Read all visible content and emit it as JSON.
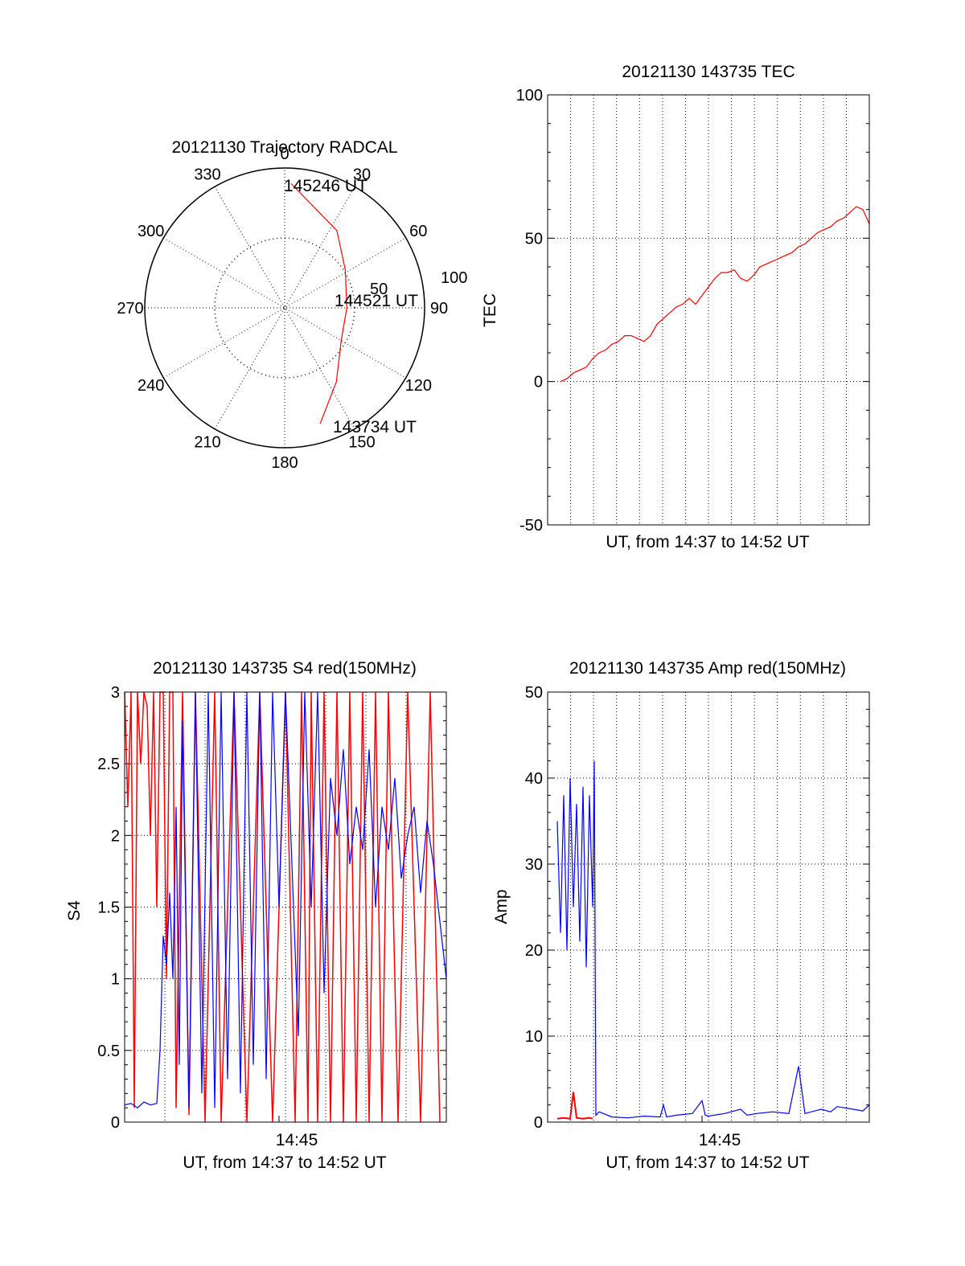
{
  "chart_data": [
    {
      "id": "trajectory",
      "type": "polar",
      "title": "20121130 Trajectory RADCAL",
      "azimuth_labels": [
        "0",
        "30",
        "60",
        "90",
        "120",
        "150",
        "180",
        "210",
        "240",
        "270",
        "300",
        "330"
      ],
      "elevation_labels": [
        "50",
        "100"
      ],
      "start_label": "143734 UT",
      "mid_label": "144521 UT",
      "end_label": "145246 UT",
      "series": [
        {
          "color": "#ff0000",
          "points": [
            {
              "zenith": 78,
              "azimuth": 163,
              "label": "143734 UT"
            },
            {
              "zenith": 58,
              "azimuth": 145
            },
            {
              "zenith": 42,
              "azimuth": 120
            },
            {
              "zenith": 40,
              "azimuth": 90,
              "label": "144521 UT"
            },
            {
              "zenith": 46,
              "azimuth": 58
            },
            {
              "zenith": 60,
              "azimuth": 34
            },
            {
              "zenith": 80,
              "azimuth": 3,
              "label": "145246 UT"
            }
          ]
        }
      ]
    },
    {
      "id": "tec",
      "type": "line",
      "title": "20121130 143735 TEC",
      "xlabel": "UT, from 14:37 to 14:52 UT",
      "ylabel": "TEC",
      "ylim": [
        -50,
        100
      ],
      "yticks": [
        "100",
        "50",
        "0",
        "-50"
      ],
      "xlim": [
        0,
        100
      ],
      "series": [
        {
          "color": "#ff0000",
          "x": [
            4,
            6,
            8,
            10,
            12,
            14,
            16,
            18,
            20,
            22,
            24,
            26,
            28,
            30,
            32,
            34,
            36,
            38,
            40,
            42,
            44,
            46,
            48,
            50,
            52,
            54,
            56,
            58,
            60,
            62,
            64,
            66,
            68,
            70,
            72,
            74,
            76,
            78,
            80,
            82,
            84,
            86,
            88,
            90,
            92,
            94,
            96,
            98,
            100
          ],
          "y": [
            0,
            1,
            3,
            4,
            5,
            8,
            10,
            11,
            13,
            14,
            16,
            16,
            15,
            14,
            16,
            20,
            22,
            24,
            26,
            27,
            29,
            27,
            30,
            33,
            36,
            38,
            38,
            39,
            36,
            35,
            37,
            40,
            41,
            42,
            43,
            44,
            45,
            47,
            48,
            50,
            52,
            53,
            54,
            56,
            57,
            59,
            61,
            60,
            55
          ]
        }
      ]
    },
    {
      "id": "s4",
      "type": "line",
      "title": "20121130 143735 S4 red(150MHz)",
      "xlabel": "UT, from 14:37 to 14:52 UT",
      "ylabel": "S4",
      "ylim": [
        0,
        3
      ],
      "yticks": [
        "3",
        "2.5",
        "2",
        "1.5",
        "1",
        "0.5",
        "0"
      ],
      "xtick_label": "14:45",
      "xtick_pos": 48,
      "series": [
        {
          "color": "#ff0000",
          "x": [
            0,
            1,
            2,
            3,
            4,
            5,
            6,
            7,
            8,
            9,
            10,
            11,
            12,
            13,
            14,
            15,
            16,
            18,
            20,
            22,
            25,
            28,
            30,
            34,
            38,
            42,
            46,
            50,
            53,
            55,
            57,
            58,
            60,
            62,
            64,
            66,
            68,
            70,
            72,
            74,
            76,
            78,
            80,
            82,
            85,
            88,
            92,
            95,
            98
          ],
          "y": [
            3,
            2.2,
            3,
            0.1,
            3,
            2.5,
            3,
            2.9,
            2.0,
            3,
            1.5,
            3,
            3,
            1.0,
            3,
            3,
            0.1,
            3,
            0.05,
            3,
            0,
            3,
            0,
            3,
            0,
            3,
            0,
            3,
            0,
            3,
            0,
            3,
            0,
            3,
            0,
            3,
            0,
            3,
            0,
            3,
            0,
            3,
            0,
            3,
            0,
            3,
            0,
            3,
            0
          ]
        },
        {
          "color": "#0000ff",
          "x": [
            0,
            2,
            4,
            6,
            8,
            10,
            11,
            12,
            13,
            14,
            15,
            16,
            17,
            18,
            20,
            22,
            24,
            26,
            28,
            30,
            32,
            34,
            36,
            38,
            40,
            42,
            44,
            46,
            48,
            50,
            52,
            54,
            56,
            58,
            60,
            62,
            64,
            66,
            68,
            70,
            72,
            74,
            76,
            78,
            80,
            82,
            84,
            86,
            88,
            90,
            92,
            94,
            96,
            98,
            100
          ],
          "y": [
            0.12,
            0.13,
            0.1,
            0.14,
            0.12,
            0.13,
            0.5,
            1.3,
            1.1,
            1.6,
            1.0,
            2.2,
            0.4,
            2.8,
            0.1,
            3,
            0.2,
            3,
            0.1,
            3,
            0.3,
            3,
            0.2,
            3,
            0.4,
            3,
            0.3,
            3,
            1.5,
            3,
            1.8,
            0.6,
            3,
            1.5,
            3,
            0.9,
            2.4,
            2.0,
            2.6,
            1.8,
            2.2,
            1.9,
            2.6,
            1.5,
            2.2,
            1.9,
            2.4,
            1.7,
            2.0,
            2.2,
            1.6,
            2.1,
            1.8,
            1.4,
            1.0
          ]
        }
      ]
    },
    {
      "id": "amp",
      "type": "line",
      "title": "20121130 143735 Amp red(150MHz)",
      "xlabel": "UT, from 14:37 to 14:52 UT",
      "ylabel": "Amp",
      "ylim": [
        0,
        50
      ],
      "yticks": [
        "50",
        "40",
        "30",
        "20",
        "10",
        "0"
      ],
      "xtick_label": "14:45",
      "xtick_pos": 48,
      "series": [
        {
          "color": "#0000ff",
          "x": [
            3,
            4,
            5,
            6,
            7,
            8,
            9,
            10,
            11,
            12,
            13,
            14,
            14.5,
            15,
            16,
            18,
            20,
            25,
            30,
            35,
            36,
            37,
            40,
            45,
            48,
            49,
            50,
            55,
            60,
            62,
            65,
            70,
            75,
            78,
            80,
            85,
            88,
            90,
            95,
            98,
            100
          ],
          "y": [
            35,
            22,
            38,
            20,
            40,
            25,
            37,
            21,
            39,
            18,
            38,
            25,
            42,
            0.8,
            1.2,
            0.9,
            0.6,
            0.5,
            0.7,
            0.6,
            2.0,
            0.6,
            0.8,
            1.0,
            2.5,
            0.8,
            0.7,
            1.0,
            1.5,
            0.8,
            1.0,
            1.2,
            1.0,
            6.5,
            1.0,
            1.5,
            1.2,
            1.8,
            1.5,
            1.3,
            2.0
          ]
        },
        {
          "color": "#ff0000",
          "x": [
            3,
            5,
            7,
            8,
            9,
            11,
            13,
            14
          ],
          "y": [
            0.4,
            0.5,
            0.4,
            3.5,
            0.5,
            0.4,
            0.5,
            0.4
          ]
        }
      ]
    }
  ]
}
